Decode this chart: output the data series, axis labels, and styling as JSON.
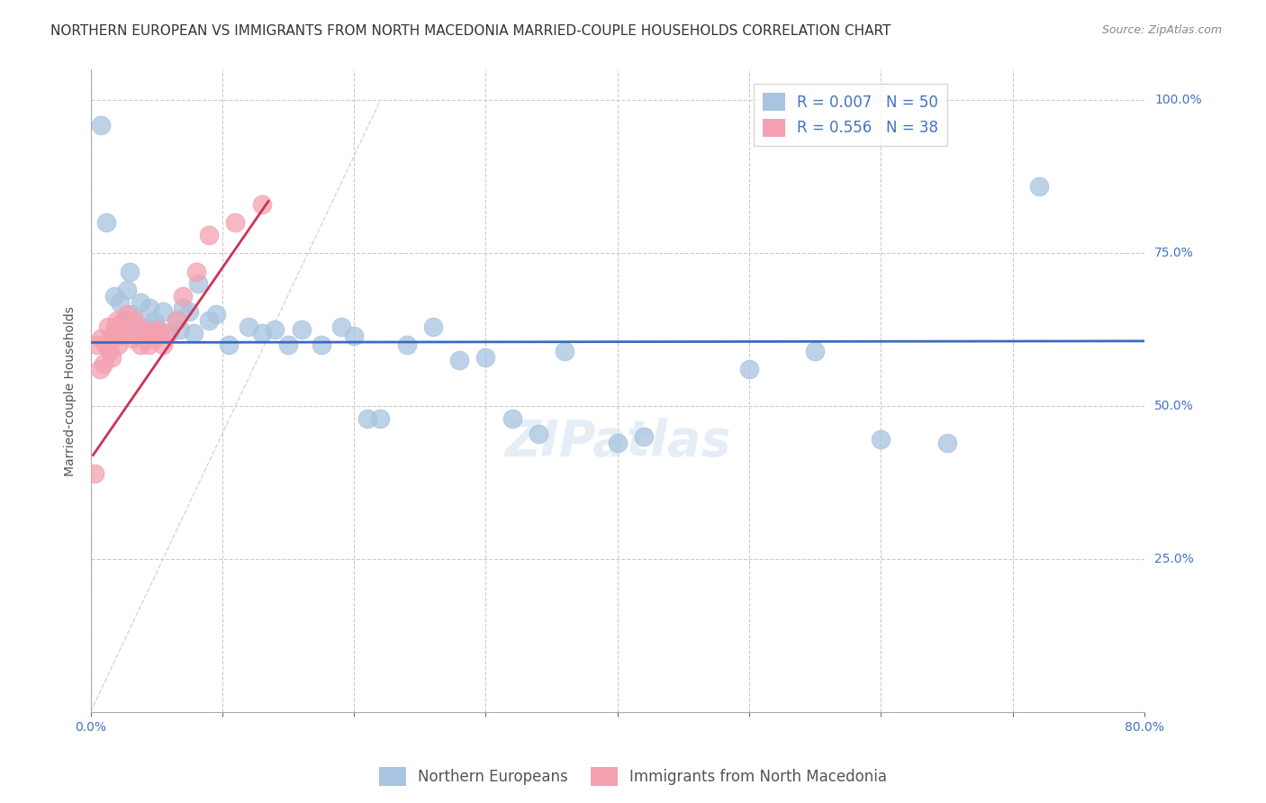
{
  "title": "NORTHERN EUROPEAN VS IMMIGRANTS FROM NORTH MACEDONIA MARRIED-COUPLE HOUSEHOLDS CORRELATION CHART",
  "source": "Source: ZipAtlas.com",
  "ylabel": "Married-couple Households",
  "ytick_labels": [
    "100.0%",
    "75.0%",
    "50.0%",
    "25.0%"
  ],
  "ytick_values": [
    1.0,
    0.75,
    0.5,
    0.25
  ],
  "xlim": [
    0.0,
    0.8
  ],
  "ylim": [
    0.0,
    1.05
  ],
  "watermark": "ZIPatlas",
  "legend_blue_r": "R = 0.007",
  "legend_blue_n": "N = 50",
  "legend_pink_r": "R = 0.556",
  "legend_pink_n": "N = 38",
  "blue_color": "#a8c4e0",
  "pink_color": "#f4a0b0",
  "trend_blue_color": "#3a6bbf",
  "trend_pink_color": "#cc3355",
  "blue_points_x": [
    0.008,
    0.012,
    0.018,
    0.022,
    0.025,
    0.028,
    0.03,
    0.032,
    0.035,
    0.038,
    0.04,
    0.042,
    0.045,
    0.048,
    0.05,
    0.055,
    0.06,
    0.065,
    0.068,
    0.07,
    0.075,
    0.078,
    0.082,
    0.09,
    0.095,
    0.105,
    0.12,
    0.13,
    0.14,
    0.15,
    0.16,
    0.175,
    0.19,
    0.2,
    0.21,
    0.22,
    0.24,
    0.26,
    0.28,
    0.3,
    0.32,
    0.34,
    0.36,
    0.4,
    0.42,
    0.5,
    0.55,
    0.6,
    0.65,
    0.72
  ],
  "blue_points_y": [
    0.96,
    0.8,
    0.68,
    0.67,
    0.64,
    0.69,
    0.72,
    0.65,
    0.63,
    0.67,
    0.62,
    0.63,
    0.66,
    0.64,
    0.63,
    0.655,
    0.62,
    0.64,
    0.625,
    0.66,
    0.655,
    0.62,
    0.7,
    0.64,
    0.65,
    0.6,
    0.63,
    0.62,
    0.625,
    0.6,
    0.625,
    0.6,
    0.63,
    0.615,
    0.48,
    0.48,
    0.6,
    0.63,
    0.575,
    0.58,
    0.48,
    0.455,
    0.59,
    0.44,
    0.45,
    0.56,
    0.59,
    0.445,
    0.44,
    0.86
  ],
  "pink_points_x": [
    0.003,
    0.005,
    0.007,
    0.008,
    0.01,
    0.012,
    0.013,
    0.015,
    0.016,
    0.017,
    0.018,
    0.019,
    0.02,
    0.021,
    0.022,
    0.024,
    0.026,
    0.028,
    0.03,
    0.032,
    0.034,
    0.036,
    0.038,
    0.04,
    0.042,
    0.044,
    0.046,
    0.048,
    0.05,
    0.052,
    0.055,
    0.058,
    0.065,
    0.07,
    0.08,
    0.09,
    0.11,
    0.13
  ],
  "pink_points_y": [
    0.39,
    0.6,
    0.56,
    0.61,
    0.57,
    0.6,
    0.63,
    0.59,
    0.58,
    0.615,
    0.615,
    0.63,
    0.64,
    0.6,
    0.615,
    0.62,
    0.64,
    0.65,
    0.63,
    0.61,
    0.64,
    0.615,
    0.6,
    0.625,
    0.61,
    0.6,
    0.62,
    0.61,
    0.625,
    0.62,
    0.6,
    0.62,
    0.64,
    0.68,
    0.72,
    0.78,
    0.8,
    0.83
  ],
  "title_fontsize": 11,
  "source_fontsize": 9,
  "axis_label_fontsize": 10,
  "tick_fontsize": 10,
  "legend_fontsize": 12,
  "watermark_fontsize": 40,
  "blue_trend_intercept": 0.604,
  "blue_trend_slope": 0.003,
  "pink_trend_x0": 0.002,
  "pink_trend_y0": 0.42,
  "pink_trend_x1": 0.135,
  "pink_trend_y1": 0.835
}
